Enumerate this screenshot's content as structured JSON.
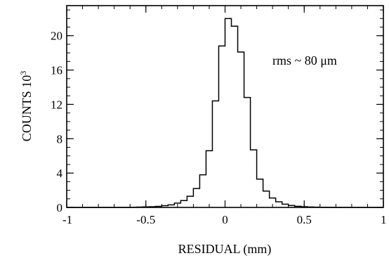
{
  "chart_data": {
    "type": "bar",
    "style": "step-histogram",
    "xlabel": "RESIDUAL (mm)",
    "ylabel": "COUNTS 10",
    "ylabel_exponent": "3",
    "annotation": "rms ~ 80 μm",
    "xlim": [
      -1,
      1
    ],
    "ylim": [
      0,
      23.5
    ],
    "x_major_ticks": [
      -1,
      -0.5,
      0,
      0.5,
      1
    ],
    "x_tick_labels": [
      "-1",
      "-0.5",
      "0",
      "0.5",
      "1"
    ],
    "x_minor_step": 0.1,
    "y_major_ticks": [
      0,
      4,
      8,
      12,
      16,
      20
    ],
    "y_tick_labels": [
      "0",
      "4",
      "8",
      "12",
      "16",
      "20"
    ],
    "y_minor_step": 1,
    "grid": false,
    "bin_width": 0.04,
    "bins_start": -1,
    "values": [
      0,
      0,
      0,
      0,
      0,
      0,
      0,
      0,
      0,
      0,
      0.02,
      0.04,
      0.06,
      0.08,
      0.12,
      0.2,
      0.3,
      0.5,
      0.8,
      1.3,
      2.2,
      3.8,
      6.6,
      12.4,
      18.8,
      22.0,
      21.1,
      18.1,
      12.8,
      6.7,
      3.3,
      1.9,
      1.1,
      0.65,
      0.38,
      0.22,
      0.13,
      0.08,
      0.05,
      0.03,
      0.02,
      0.01,
      0.01,
      0,
      0,
      0,
      0,
      0,
      0,
      0
    ]
  }
}
